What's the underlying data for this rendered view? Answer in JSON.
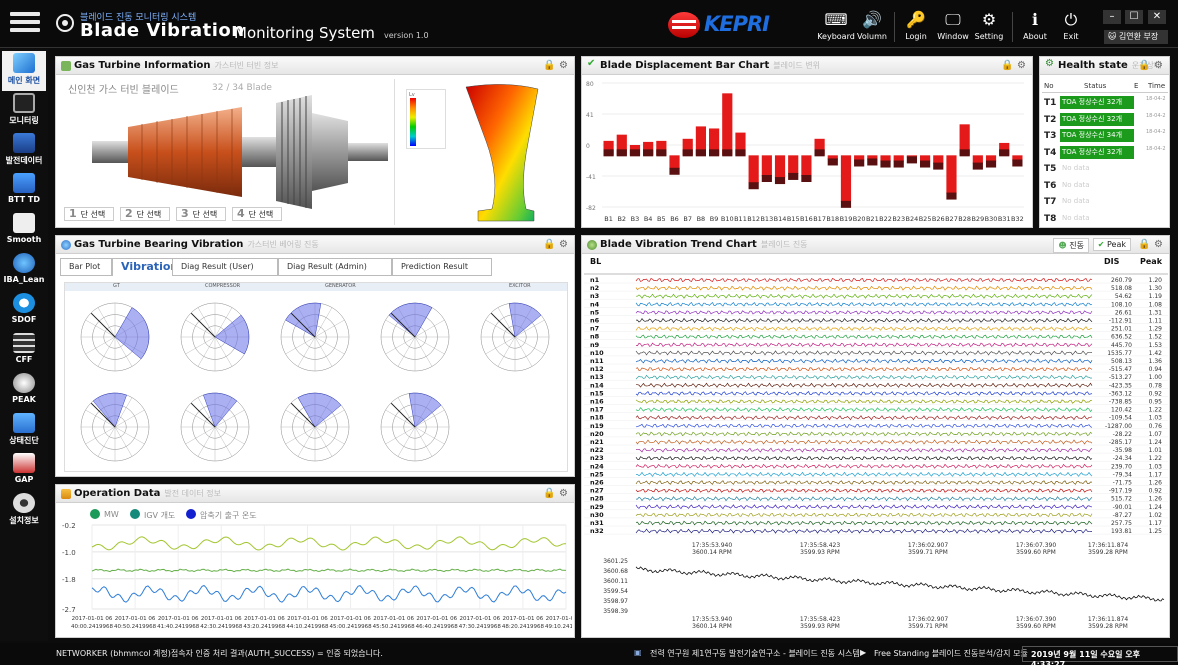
{
  "header": {
    "sub_title": "블레이드 진동 모니터링 시스템",
    "title_bold": "Blade Vibration",
    "title_light": "Monitoring System",
    "version": "version 1.0",
    "brand": "KEPRI",
    "buttons": [
      {
        "name": "keyboard",
        "label": "Keyboard",
        "icon": "keyboard-icon"
      },
      {
        "name": "volumn",
        "label": "Volumn",
        "icon": "speaker-icon"
      },
      {
        "name": "login",
        "label": "Login",
        "icon": "key-icon"
      },
      {
        "name": "window",
        "label": "Window",
        "icon": "monitor-icon"
      },
      {
        "name": "setting",
        "label": "Setting",
        "icon": "gear-icon"
      },
      {
        "name": "about",
        "label": "About",
        "icon": "info-icon"
      },
      {
        "name": "exit",
        "label": "Exit",
        "icon": "power-icon"
      }
    ],
    "user": "김연환 부장"
  },
  "sidebar": {
    "items": [
      "메인 화면",
      "모니터링",
      "발전데이터",
      "BTT TD",
      "Smooth",
      "IBA_Lean",
      "SDOF",
      "CFF",
      "PEAK",
      "상태진단",
      "GAP",
      "설치정보"
    ]
  },
  "gt_info": {
    "title": "Gas Turbine Information",
    "subtitle": "가스터빈 터빈 정보",
    "plant": "신인천 가스 터빈 블레이드",
    "blade_count": "32 / 34 Blade",
    "stage_label": "단 선택",
    "stages": [
      "1",
      "2",
      "3",
      "4"
    ],
    "legend_top": "Lv"
  },
  "blade_bar": {
    "title": "Blade Displacement Bar Chart",
    "subtitle": "블레이드 변위"
  },
  "health": {
    "title": "Health state",
    "subtitle": "운전상태",
    "columns": [
      "No",
      "Status",
      "E",
      "Time"
    ],
    "rows": [
      {
        "no": "T1",
        "status": "TOA 정상수신 32개",
        "time": "18-04-2"
      },
      {
        "no": "T2",
        "status": "TOA 정상수신 32개",
        "time": "18-04-2"
      },
      {
        "no": "T3",
        "status": "TOA 정상수신 34개",
        "time": "18-04-2"
      },
      {
        "no": "T4",
        "status": "TOA 정상수신 32개",
        "time": "18-04-2"
      },
      {
        "no": "T5",
        "status": "No data",
        "time": ""
      },
      {
        "no": "T6",
        "status": "No data",
        "time": ""
      },
      {
        "no": "T7",
        "status": "No data",
        "time": ""
      },
      {
        "no": "T8",
        "status": "No data",
        "time": ""
      }
    ]
  },
  "bearing": {
    "title": "Gas Turbine Bearing Vibration",
    "subtitle": "가스터빈 베어링 진동",
    "tabs": [
      "Bar Plot",
      "Vibration",
      "Diag Result (User)",
      "Diag Result (Admin)",
      "Prediction Result"
    ],
    "active_tab": "Vibration",
    "sections": [
      "GT",
      "COMPRESSOR",
      "GENERATOR",
      "EXCITOR"
    ]
  },
  "trend": {
    "title": "Blade Vibration Trend Chart",
    "subtitle": "블레이드 진동",
    "btn_auto": "진동",
    "btn_peak": "Peak",
    "col_bl": "BL",
    "col_dis": "DIS",
    "col_peak": "Peak",
    "time_axis": [
      {
        "time": "17:35:53.940",
        "rpm": "3600.14 RPM"
      },
      {
        "time": "17:35:58.423",
        "rpm": "3599.93 RPM"
      },
      {
        "time": "17:36:02.907",
        "rpm": "3599.71 RPM"
      },
      {
        "time": "17:36:07.390",
        "rpm": "3599.60 RPM"
      },
      {
        "time": "17:36:11.874",
        "rpm": "3599.28 RPM"
      }
    ],
    "rpm_ticks": [
      "3601.25",
      "3600.68",
      "3600.11",
      "3599.54",
      "3598.97",
      "3598.39"
    ]
  },
  "operation": {
    "title": "Operation Data",
    "subtitle": "발전 데이터 정보",
    "legend": [
      "MW",
      "IGV 개도",
      "압축기 출구 온도"
    ],
    "y_ticks": [
      "-0.2",
      "-1.0",
      "-1.8",
      "-2.7"
    ],
    "x_ticks": [
      {
        "d": "2017-01-01 06",
        "t": "40:00.2419968"
      },
      {
        "d": "2017-01-01 06",
        "t": "40:50.2419968"
      },
      {
        "d": "2017-01-01 06",
        "t": "41:40.2419968"
      },
      {
        "d": "2017-01-01 06",
        "t": "42:30.2419968"
      },
      {
        "d": "2017-01-01 06",
        "t": "43:20.2419968"
      },
      {
        "d": "2017-01-01 06",
        "t": "44:10.2419968"
      },
      {
        "d": "2017-01-01 06",
        "t": "45:00.2419968"
      },
      {
        "d": "2017-01-01 06",
        "t": "45:50.2419968"
      },
      {
        "d": "2017-01-01 06",
        "t": "46:40.2419968"
      },
      {
        "d": "2017-01-01 06",
        "t": "47:30.2419968"
      },
      {
        "d": "2017-01-01 06",
        "t": "48:20.2419968"
      },
      {
        "d": "2017-01-01 06",
        "t": "49:10.2419968"
      }
    ]
  },
  "footer": {
    "status": "NETWORKER (bhmmcol 계정)접속자 인증 처리 결과(AUTH_SUCCESS) = 인증 되었습니다.",
    "org": "전력 연구원 제1연구동 발전기술연구소 - 블레이드 진동 시스템",
    "mode": "Free Standing 블레이드 진동분석/감지 모듈",
    "datetime": "2019년 9월 11일 수요일 오후 4:33:27"
  },
  "colors": {
    "accent": "#1b4fa0",
    "bar": "#e41a1a",
    "bar_dark": "#5a1010",
    "health_ok": "#1c9a1c"
  },
  "chart_data": [
    {
      "type": "bar",
      "categories": [
        "B1",
        "B2",
        "B3",
        "B4",
        "B5",
        "B6",
        "B7",
        "B8",
        "B9",
        "B10",
        "B11",
        "B12",
        "B13",
        "B14",
        "B15",
        "B16",
        "B17",
        "B18",
        "B19",
        "B20",
        "B21",
        "B22",
        "B23",
        "B24",
        "B25",
        "B26",
        "B27",
        "B28",
        "B29",
        "B30",
        "B31",
        "B32"
      ],
      "values": [
        14,
        20,
        10,
        13,
        14,
        -13,
        16,
        28,
        26,
        60,
        22,
        -27,
        -20,
        -22,
        -18,
        -20,
        16,
        -4,
        -45,
        -5,
        -4,
        -6,
        -6,
        -2,
        -6,
        -8,
        -37,
        30,
        -8,
        -6,
        12,
        -5
      ],
      "ylim": [
        -50,
        70
      ],
      "y_ticks": [
        "80",
        "41",
        "0",
        "-41",
        "-82"
      ]
    },
    {
      "type": "line",
      "series": [
        {
          "name": "MW",
          "color": "#a3c630"
        },
        {
          "name": "IGV 개도",
          "color": "#66b04a"
        },
        {
          "name": "압축기 출구 온도",
          "color": "#2f7ed8"
        }
      ],
      "ylim": [
        -2.7,
        -0.2
      ]
    },
    {
      "type": "table",
      "name": "blade-trend",
      "rows": [
        {
          "bl": "n1",
          "dis": "260.79",
          "peak": "1.20"
        },
        {
          "bl": "n2",
          "dis": "518.08",
          "peak": "1.30"
        },
        {
          "bl": "n3",
          "dis": "54.62",
          "peak": "1.19"
        },
        {
          "bl": "n4",
          "dis": "108.10",
          "peak": "1.08"
        },
        {
          "bl": "n5",
          "dis": "26.61",
          "peak": "1.31"
        },
        {
          "bl": "n6",
          "dis": "-112.91",
          "peak": "1.11"
        },
        {
          "bl": "n7",
          "dis": "251.01",
          "peak": "1.29"
        },
        {
          "bl": "n8",
          "dis": "636.52",
          "peak": "1.52"
        },
        {
          "bl": "n9",
          "dis": "445.70",
          "peak": "1.53"
        },
        {
          "bl": "n10",
          "dis": "1535.77",
          "peak": "1.42"
        },
        {
          "bl": "n11",
          "dis": "508.13",
          "peak": "1.36"
        },
        {
          "bl": "n12",
          "dis": "-515.47",
          "peak": "0.94"
        },
        {
          "bl": "n13",
          "dis": "-513.27",
          "peak": "1.00"
        },
        {
          "bl": "n14",
          "dis": "-423.35",
          "peak": "0.78"
        },
        {
          "bl": "n15",
          "dis": "-363.12",
          "peak": "0.92"
        },
        {
          "bl": "n16",
          "dis": "-738.85",
          "peak": "0.95"
        },
        {
          "bl": "n17",
          "dis": "120.42",
          "peak": "1.22"
        },
        {
          "bl": "n18",
          "dis": "-109.54",
          "peak": "1.03"
        },
        {
          "bl": "n19",
          "dis": "-1287.00",
          "peak": "0.76"
        },
        {
          "bl": "n20",
          "dis": "-28.22",
          "peak": "1.07"
        },
        {
          "bl": "n21",
          "dis": "-285.17",
          "peak": "1.24"
        },
        {
          "bl": "n22",
          "dis": "-35.98",
          "peak": "1.01"
        },
        {
          "bl": "n23",
          "dis": "-24.34",
          "peak": "1.22"
        },
        {
          "bl": "n24",
          "dis": "239.70",
          "peak": "1.03"
        },
        {
          "bl": "n25",
          "dis": "-79.34",
          "peak": "1.17"
        },
        {
          "bl": "n26",
          "dis": "-71.75",
          "peak": "1.26"
        },
        {
          "bl": "n27",
          "dis": "-917.19",
          "peak": "0.92"
        },
        {
          "bl": "n28",
          "dis": "515.72",
          "peak": "1.26"
        },
        {
          "bl": "n29",
          "dis": "-90.01",
          "peak": "1.24"
        },
        {
          "bl": "n30",
          "dis": "-87.27",
          "peak": "1.02"
        },
        {
          "bl": "n31",
          "dis": "257.75",
          "peak": "1.17"
        },
        {
          "bl": "n32",
          "dis": "193.81",
          "peak": "1.25"
        }
      ]
    }
  ]
}
